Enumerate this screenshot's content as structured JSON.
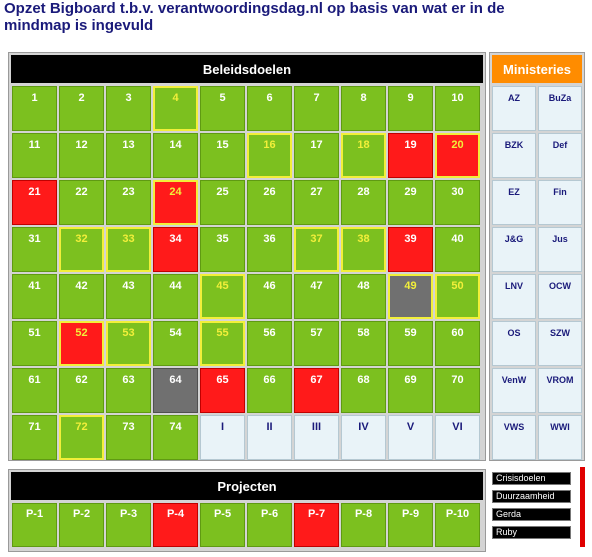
{
  "title": "Opzet Bigboard t.b.v. verantwoordingsdag.nl op basis van wat er in de mindmap is ingevuld",
  "colors": {
    "green": "#7cc01f",
    "red": "#ff1a1a",
    "grey": "#707070",
    "highlight": "#f2ef3a",
    "orange": "#ff8c00",
    "header": "#000000"
  },
  "beleidsdoelen": {
    "header": "Beleidsdoelen",
    "cells": [
      {
        "label": "1",
        "s": "green"
      },
      {
        "label": "2",
        "s": "green"
      },
      {
        "label": "3",
        "s": "green"
      },
      {
        "label": "4",
        "s": "green",
        "hl": true
      },
      {
        "label": "5",
        "s": "green"
      },
      {
        "label": "6",
        "s": "green"
      },
      {
        "label": "7",
        "s": "green"
      },
      {
        "label": "8",
        "s": "green"
      },
      {
        "label": "9",
        "s": "green"
      },
      {
        "label": "10",
        "s": "green"
      },
      {
        "label": "11",
        "s": "green"
      },
      {
        "label": "12",
        "s": "green"
      },
      {
        "label": "13",
        "s": "green"
      },
      {
        "label": "14",
        "s": "green"
      },
      {
        "label": "15",
        "s": "green"
      },
      {
        "label": "16",
        "s": "green",
        "hl": true
      },
      {
        "label": "17",
        "s": "green"
      },
      {
        "label": "18",
        "s": "green",
        "hl": true
      },
      {
        "label": "19",
        "s": "red"
      },
      {
        "label": "20",
        "s": "red",
        "hl": true
      },
      {
        "label": "21",
        "s": "red"
      },
      {
        "label": "22",
        "s": "green"
      },
      {
        "label": "23",
        "s": "green"
      },
      {
        "label": "24",
        "s": "red",
        "hl": true
      },
      {
        "label": "25",
        "s": "green"
      },
      {
        "label": "26",
        "s": "green"
      },
      {
        "label": "27",
        "s": "green"
      },
      {
        "label": "28",
        "s": "green"
      },
      {
        "label": "29",
        "s": "green"
      },
      {
        "label": "30",
        "s": "green"
      },
      {
        "label": "31",
        "s": "green"
      },
      {
        "label": "32",
        "s": "green",
        "hl": true
      },
      {
        "label": "33",
        "s": "green",
        "hl": true
      },
      {
        "label": "34",
        "s": "red"
      },
      {
        "label": "35",
        "s": "green"
      },
      {
        "label": "36",
        "s": "green"
      },
      {
        "label": "37",
        "s": "green",
        "hl": true
      },
      {
        "label": "38",
        "s": "green",
        "hl": true
      },
      {
        "label": "39",
        "s": "red"
      },
      {
        "label": "40",
        "s": "green"
      },
      {
        "label": "41",
        "s": "green"
      },
      {
        "label": "42",
        "s": "green"
      },
      {
        "label": "43",
        "s": "green"
      },
      {
        "label": "44",
        "s": "green"
      },
      {
        "label": "45",
        "s": "green",
        "hl": true
      },
      {
        "label": "46",
        "s": "green"
      },
      {
        "label": "47",
        "s": "green"
      },
      {
        "label": "48",
        "s": "green"
      },
      {
        "label": "49",
        "s": "grey",
        "hl": true
      },
      {
        "label": "50",
        "s": "green",
        "hl": true
      },
      {
        "label": "51",
        "s": "green"
      },
      {
        "label": "52",
        "s": "red",
        "hl": true
      },
      {
        "label": "53",
        "s": "green",
        "hl": true
      },
      {
        "label": "54",
        "s": "green"
      },
      {
        "label": "55",
        "s": "green",
        "hl": true
      },
      {
        "label": "56",
        "s": "green"
      },
      {
        "label": "57",
        "s": "green"
      },
      {
        "label": "58",
        "s": "green"
      },
      {
        "label": "59",
        "s": "green"
      },
      {
        "label": "60",
        "s": "green"
      },
      {
        "label": "61",
        "s": "green"
      },
      {
        "label": "62",
        "s": "green"
      },
      {
        "label": "63",
        "s": "green"
      },
      {
        "label": "64",
        "s": "grey"
      },
      {
        "label": "65",
        "s": "red"
      },
      {
        "label": "66",
        "s": "green"
      },
      {
        "label": "67",
        "s": "red"
      },
      {
        "label": "68",
        "s": "green"
      },
      {
        "label": "69",
        "s": "green"
      },
      {
        "label": "70",
        "s": "green"
      },
      {
        "label": "71",
        "s": "green"
      },
      {
        "label": "72",
        "s": "green",
        "hl": true
      },
      {
        "label": "73",
        "s": "green"
      },
      {
        "label": "74",
        "s": "green"
      },
      {
        "label": "I",
        "s": "light"
      },
      {
        "label": "II",
        "s": "light"
      },
      {
        "label": "III",
        "s": "light"
      },
      {
        "label": "IV",
        "s": "light"
      },
      {
        "label": "V",
        "s": "light"
      },
      {
        "label": "VI",
        "s": "light"
      }
    ]
  },
  "ministeries": {
    "header": "Ministeries",
    "items": [
      "AZ",
      "BuZa",
      "BZK",
      "Def",
      "EZ",
      "Fin",
      "J&G",
      "Jus",
      "LNV",
      "OCW",
      "OS",
      "SZW",
      "VenW",
      "VROM",
      "VWS",
      "WWI"
    ]
  },
  "projecten": {
    "header": "Projecten",
    "items": [
      {
        "label": "P-1",
        "s": "green"
      },
      {
        "label": "P-2",
        "s": "green"
      },
      {
        "label": "P-3",
        "s": "green"
      },
      {
        "label": "P-4",
        "s": "red"
      },
      {
        "label": "P-5",
        "s": "green"
      },
      {
        "label": "P-6",
        "s": "green"
      },
      {
        "label": "P-7",
        "s": "red"
      },
      {
        "label": "P-8",
        "s": "green"
      },
      {
        "label": "P-9",
        "s": "green"
      },
      {
        "label": "P-10",
        "s": "green"
      }
    ]
  },
  "legend": {
    "items": [
      "Crisisdoelen",
      "Duurzaamheid",
      "Gerda",
      "Ruby"
    ]
  }
}
